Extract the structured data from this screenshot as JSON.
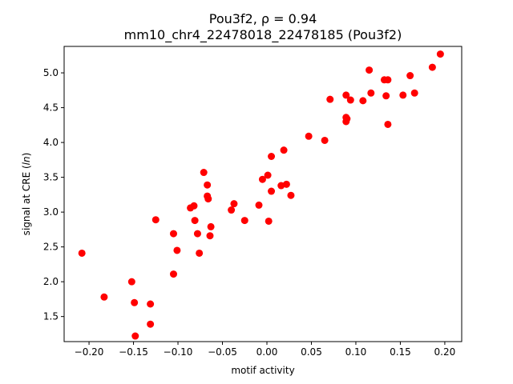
{
  "chart_data": {
    "type": "scatter",
    "title_line1": "Pou3f2, ρ = 0.94",
    "title_line2": "mm10_chr4_22478018_22478185 (Pou3f2)",
    "xlabel": "motif activity",
    "ylabel_prefix": "signal at CRE (",
    "ylabel_italic": "ln",
    "ylabel_suffix": ")",
    "xlim": [
      -0.228,
      0.219
    ],
    "ylim": [
      1.14,
      5.38
    ],
    "x_ticks": [
      -0.2,
      -0.15,
      -0.1,
      -0.05,
      0.0,
      0.05,
      0.1,
      0.15,
      0.2
    ],
    "x_tick_labels": [
      "−0.20",
      "−0.15",
      "−0.10",
      "−0.05",
      "0.00",
      "0.05",
      "0.10",
      "0.15",
      "0.20"
    ],
    "y_ticks": [
      1.5,
      2.0,
      2.5,
      3.0,
      3.5,
      4.0,
      4.5,
      5.0
    ],
    "y_tick_labels": [
      "1.5",
      "2.0",
      "2.5",
      "3.0",
      "3.5",
      "4.0",
      "4.5",
      "5.0"
    ],
    "marker_color": "#ff0000",
    "grid": false,
    "points": [
      {
        "x": -0.208,
        "y": 2.41
      },
      {
        "x": -0.183,
        "y": 1.78
      },
      {
        "x": -0.152,
        "y": 2.0
      },
      {
        "x": -0.149,
        "y": 1.7
      },
      {
        "x": -0.148,
        "y": 1.22
      },
      {
        "x": -0.131,
        "y": 1.68
      },
      {
        "x": -0.131,
        "y": 1.39
      },
      {
        "x": -0.125,
        "y": 2.89
      },
      {
        "x": -0.105,
        "y": 2.69
      },
      {
        "x": -0.105,
        "y": 2.11
      },
      {
        "x": -0.101,
        "y": 2.45
      },
      {
        "x": -0.086,
        "y": 3.06
      },
      {
        "x": -0.082,
        "y": 3.09
      },
      {
        "x": -0.081,
        "y": 2.88
      },
      {
        "x": -0.078,
        "y": 2.69
      },
      {
        "x": -0.076,
        "y": 2.41
      },
      {
        "x": -0.071,
        "y": 3.57
      },
      {
        "x": -0.067,
        "y": 3.39
      },
      {
        "x": -0.067,
        "y": 3.23
      },
      {
        "x": -0.066,
        "y": 3.19
      },
      {
        "x": -0.064,
        "y": 2.66
      },
      {
        "x": -0.063,
        "y": 2.79
      },
      {
        "x": -0.04,
        "y": 3.03
      },
      {
        "x": -0.037,
        "y": 3.12
      },
      {
        "x": -0.025,
        "y": 2.88
      },
      {
        "x": -0.009,
        "y": 3.1
      },
      {
        "x": -0.005,
        "y": 3.47
      },
      {
        "x": 0.001,
        "y": 3.53
      },
      {
        "x": 0.002,
        "y": 2.87
      },
      {
        "x": 0.005,
        "y": 3.8
      },
      {
        "x": 0.005,
        "y": 3.3
      },
      {
        "x": 0.016,
        "y": 3.38
      },
      {
        "x": 0.019,
        "y": 3.89
      },
      {
        "x": 0.022,
        "y": 3.4
      },
      {
        "x": 0.027,
        "y": 3.24
      },
      {
        "x": 0.047,
        "y": 4.09
      },
      {
        "x": 0.065,
        "y": 4.03
      },
      {
        "x": 0.071,
        "y": 4.62
      },
      {
        "x": 0.089,
        "y": 4.68
      },
      {
        "x": 0.089,
        "y": 4.36
      },
      {
        "x": 0.089,
        "y": 4.3
      },
      {
        "x": 0.09,
        "y": 4.34
      },
      {
        "x": 0.094,
        "y": 4.61
      },
      {
        "x": 0.108,
        "y": 4.6
      },
      {
        "x": 0.115,
        "y": 5.04
      },
      {
        "x": 0.117,
        "y": 4.71
      },
      {
        "x": 0.132,
        "y": 4.9
      },
      {
        "x": 0.134,
        "y": 4.67
      },
      {
        "x": 0.136,
        "y": 4.9
      },
      {
        "x": 0.136,
        "y": 4.26
      },
      {
        "x": 0.153,
        "y": 4.68
      },
      {
        "x": 0.161,
        "y": 4.96
      },
      {
        "x": 0.166,
        "y": 4.71
      },
      {
        "x": 0.186,
        "y": 5.08
      },
      {
        "x": 0.195,
        "y": 5.27
      }
    ]
  }
}
